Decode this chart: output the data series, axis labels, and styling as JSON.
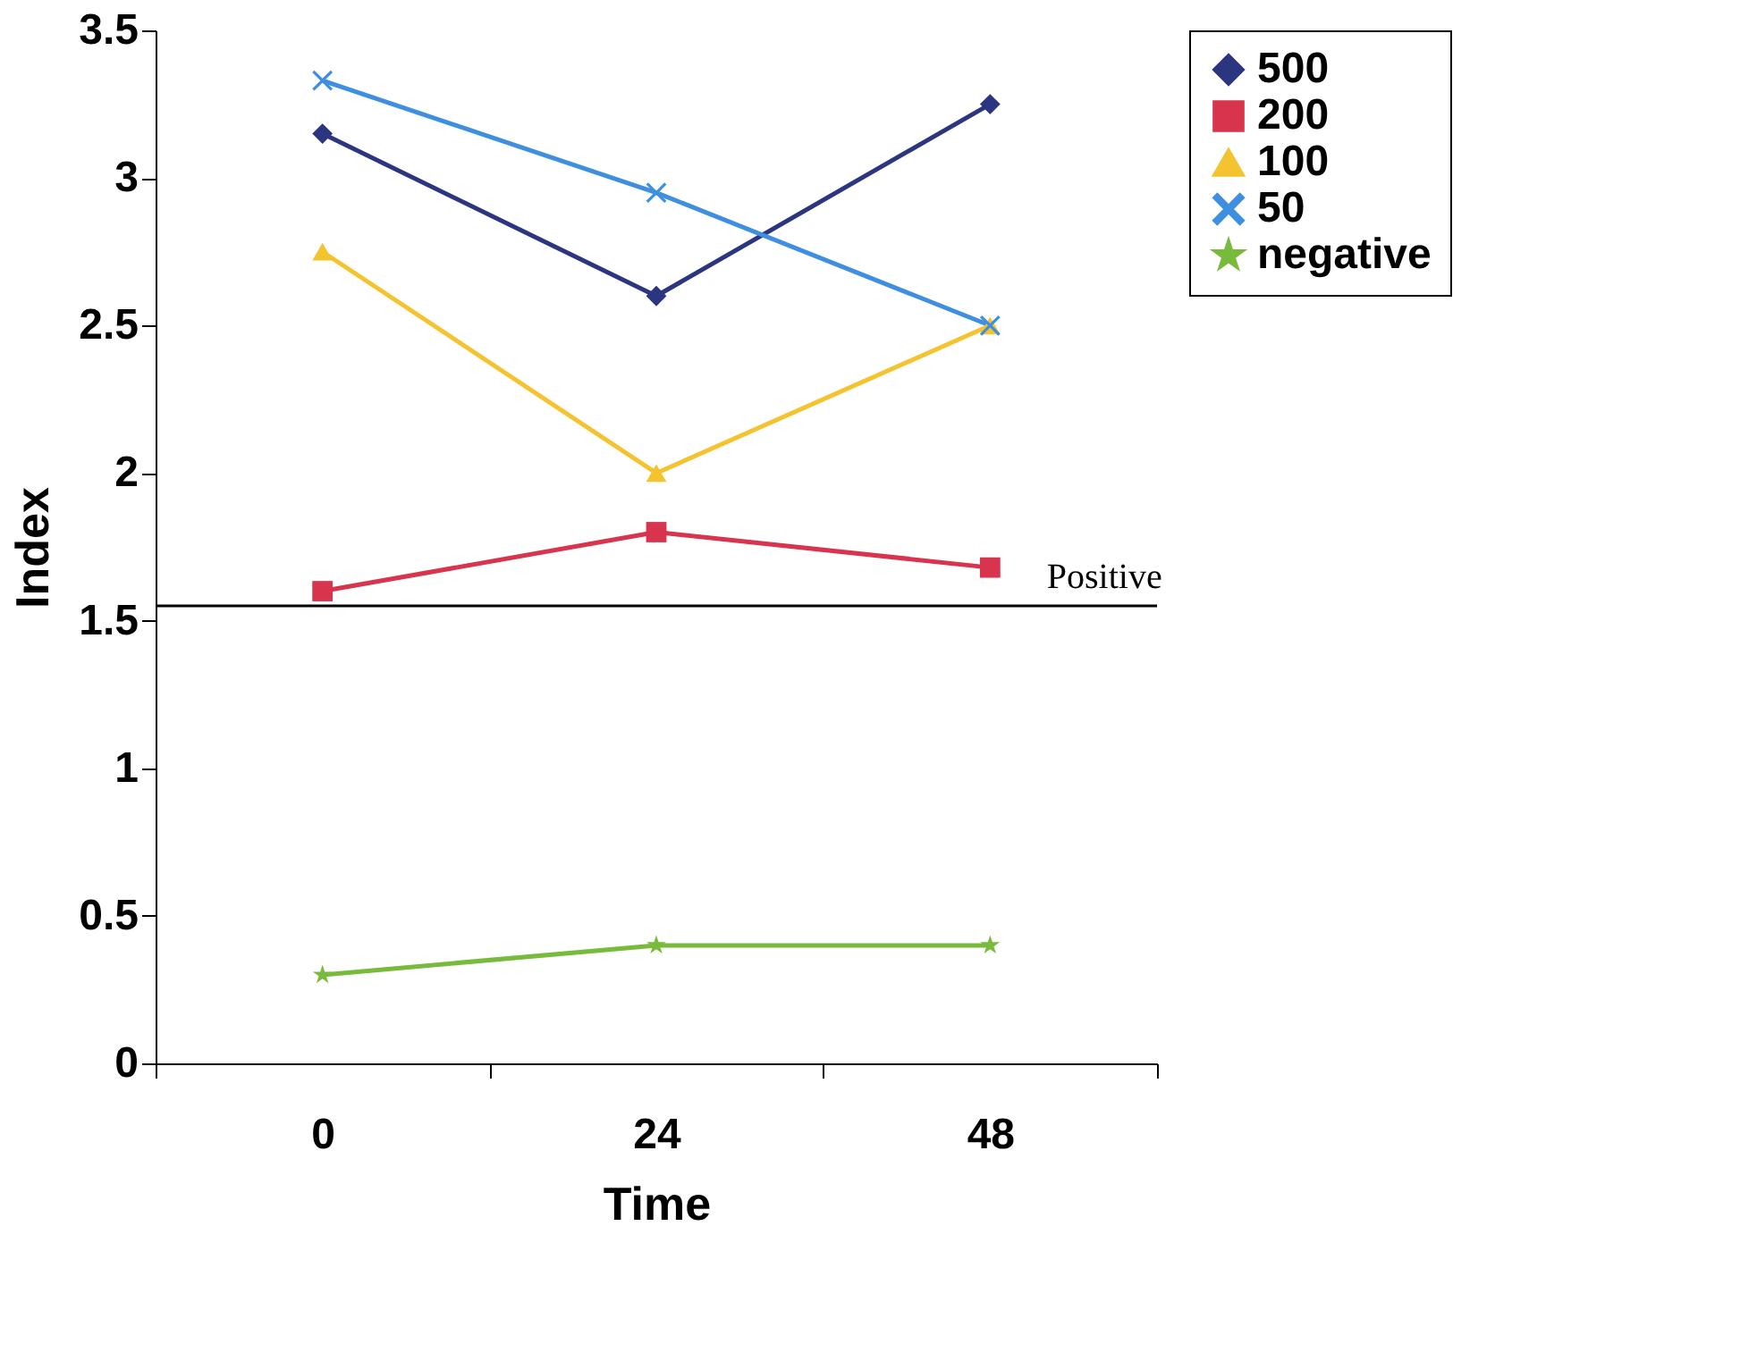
{
  "chart_data": {
    "type": "line",
    "xlabel": "Time",
    "ylabel": "Index",
    "categories": [
      "0",
      "24",
      "48"
    ],
    "series": [
      {
        "name": "500",
        "color": "#2b3580",
        "marker": "diamond",
        "values": [
          3.15,
          2.6,
          3.25
        ]
      },
      {
        "name": "200",
        "color": "#d8344e",
        "marker": "square",
        "values": [
          1.6,
          1.8,
          1.68
        ]
      },
      {
        "name": "100",
        "color": "#f4c430",
        "marker": "triangle",
        "values": [
          2.75,
          2.0,
          2.5
        ]
      },
      {
        "name": "50",
        "color": "#3f8fe0",
        "marker": "cross",
        "values": [
          3.33,
          2.95,
          2.5
        ]
      },
      {
        "name": "negative",
        "color": "#78bb3c",
        "marker": "star",
        "values": [
          0.3,
          0.4,
          0.4
        ]
      }
    ],
    "ylim": [
      0,
      3.5
    ],
    "yticks": [
      0,
      0.5,
      1,
      1.5,
      2,
      2.5,
      3,
      3.5
    ],
    "ref_lines": [
      {
        "axis": "y",
        "value": 1.55,
        "label": "Positive",
        "color": "#000000"
      }
    ],
    "grid": false,
    "legend": "top right",
    "line_style": "solid"
  }
}
